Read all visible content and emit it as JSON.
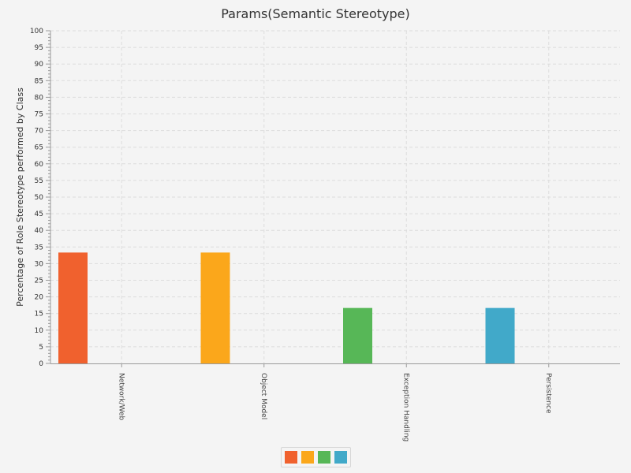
{
  "chart_data": {
    "type": "bar",
    "title": "Params(Semantic Stereotype)",
    "xlabel": "",
    "ylabel": "Percentage of Role Stereotype performed by Class",
    "ylim": [
      0,
      100
    ],
    "y_major_step": 5,
    "y_minor_step": 1,
    "categories": [
      "Network/Web",
      "Object Model",
      "Exception Handling",
      "Persistence"
    ],
    "values": [
      33.33,
      33.33,
      16.67,
      16.67
    ],
    "colors": [
      "#f0612e",
      "#fba71b",
      "#57b757",
      "#41a9c9"
    ],
    "grid": true,
    "legend": {
      "position": "bottom-center",
      "entries": [
        "",
        "",
        "",
        ""
      ]
    }
  }
}
